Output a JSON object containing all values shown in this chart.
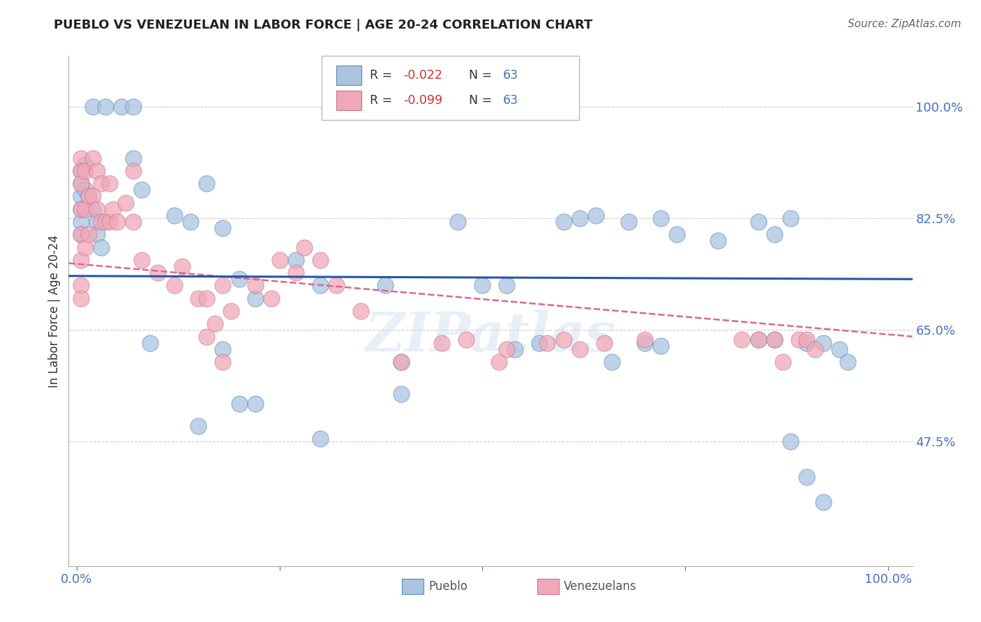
{
  "title": "PUEBLO VS VENEZUELAN IN LABOR FORCE | AGE 20-24 CORRELATION CHART",
  "source": "Source: ZipAtlas.com",
  "ylabel": "In Labor Force | Age 20-24",
  "blue_color": "#aac4e0",
  "pink_color": "#f0a8b8",
  "blue_edge_color": "#5588bb",
  "pink_edge_color": "#cc7090",
  "blue_line_color": "#2255aa",
  "pink_line_color": "#dd6688",
  "watermark": "ZIPatlas",
  "background_color": "#ffffff",
  "grid_color": "#cccccc",
  "ytick_positions": [
    0.475,
    0.65,
    0.825,
    1.0
  ],
  "ytick_labels": [
    "47.5%",
    "65.0%",
    "82.5%",
    "100.0%"
  ],
  "ymin": 0.28,
  "ymax": 1.08,
  "xmin": -0.01,
  "xmax": 1.03,
  "blue_line_x0": 0.0,
  "blue_line_x1": 1.0,
  "blue_line_y0": 0.735,
  "blue_line_y1": 0.73,
  "pink_line_x0": 0.0,
  "pink_line_x1": 1.0,
  "pink_line_y0": 0.755,
  "pink_line_y1": 0.64,
  "pueblo_x": [
    0.02,
    0.035,
    0.055,
    0.07,
    0.01,
    0.005,
    0.005,
    0.005,
    0.005,
    0.005,
    0.005,
    0.01,
    0.015,
    0.02,
    0.025,
    0.025,
    0.03,
    0.07,
    0.08,
    0.12,
    0.14,
    0.16,
    0.18,
    0.27,
    0.3,
    0.47,
    0.5,
    0.53,
    0.6,
    0.62,
    0.64,
    0.68,
    0.72,
    0.74,
    0.79,
    0.84,
    0.86,
    0.88,
    0.9,
    0.92,
    0.94,
    0.95,
    0.2,
    0.22,
    0.38,
    0.4,
    0.54,
    0.57,
    0.66,
    0.7,
    0.72,
    0.84,
    0.86,
    0.88,
    0.9,
    0.92,
    0.2,
    0.22,
    0.15,
    0.09,
    0.4,
    0.3,
    0.18
  ],
  "pueblo_y": [
    1.0,
    1.0,
    1.0,
    1.0,
    0.91,
    0.9,
    0.88,
    0.86,
    0.84,
    0.82,
    0.8,
    0.87,
    0.86,
    0.84,
    0.82,
    0.8,
    0.78,
    0.92,
    0.87,
    0.83,
    0.82,
    0.88,
    0.81,
    0.76,
    0.72,
    0.82,
    0.72,
    0.72,
    0.82,
    0.825,
    0.83,
    0.82,
    0.825,
    0.8,
    0.79,
    0.82,
    0.8,
    0.825,
    0.63,
    0.63,
    0.62,
    0.6,
    0.73,
    0.7,
    0.72,
    0.6,
    0.62,
    0.63,
    0.6,
    0.63,
    0.625,
    0.635,
    0.635,
    0.475,
    0.42,
    0.38,
    0.535,
    0.535,
    0.5,
    0.63,
    0.55,
    0.48,
    0.62
  ],
  "venezuelan_x": [
    0.005,
    0.005,
    0.005,
    0.005,
    0.005,
    0.005,
    0.005,
    0.005,
    0.01,
    0.01,
    0.01,
    0.015,
    0.015,
    0.02,
    0.02,
    0.025,
    0.025,
    0.03,
    0.03,
    0.035,
    0.04,
    0.04,
    0.045,
    0.05,
    0.06,
    0.07,
    0.07,
    0.08,
    0.1,
    0.12,
    0.13,
    0.15,
    0.16,
    0.17,
    0.18,
    0.19,
    0.22,
    0.24,
    0.25,
    0.27,
    0.28,
    0.3,
    0.32,
    0.35,
    0.4,
    0.45,
    0.48,
    0.52,
    0.53,
    0.58,
    0.6,
    0.62,
    0.65,
    0.7,
    0.82,
    0.84,
    0.86,
    0.87,
    0.89,
    0.9,
    0.91,
    0.16,
    0.18
  ],
  "venezuelan_y": [
    0.92,
    0.9,
    0.88,
    0.84,
    0.8,
    0.76,
    0.72,
    0.7,
    0.9,
    0.84,
    0.78,
    0.86,
    0.8,
    0.92,
    0.86,
    0.9,
    0.84,
    0.88,
    0.82,
    0.82,
    0.88,
    0.82,
    0.84,
    0.82,
    0.85,
    0.9,
    0.82,
    0.76,
    0.74,
    0.72,
    0.75,
    0.7,
    0.7,
    0.66,
    0.72,
    0.68,
    0.72,
    0.7,
    0.76,
    0.74,
    0.78,
    0.76,
    0.72,
    0.68,
    0.6,
    0.63,
    0.635,
    0.6,
    0.62,
    0.63,
    0.635,
    0.62,
    0.63,
    0.635,
    0.635,
    0.635,
    0.635,
    0.6,
    0.635,
    0.635,
    0.62,
    0.64,
    0.6
  ]
}
